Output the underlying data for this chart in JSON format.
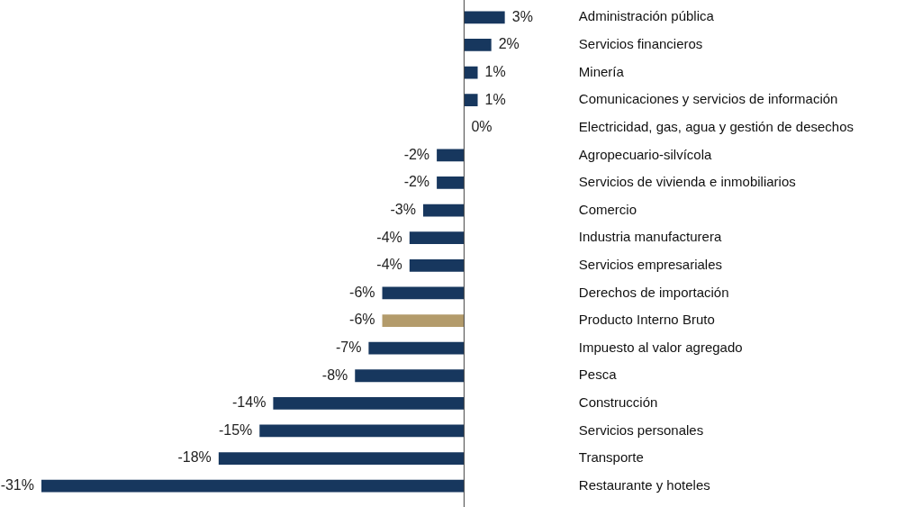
{
  "chart_data": {
    "type": "bar",
    "orientation": "horizontal",
    "categories": [
      "Administración pública",
      "Servicios financieros",
      "Minería",
      "Comunicaciones y servicios de información",
      "Electricidad, gas, agua y gestión de desechos",
      "Agropecuario-silvícola",
      "Servicios de vivienda e inmobiliarios",
      "Comercio",
      "Industria manufacturera",
      "Servicios empresariales",
      "Derechos de importación",
      "Producto Interno Bruto",
      "Impuesto al valor agregado",
      "Pesca",
      "Construcción",
      "Servicios personales",
      "Transporte",
      "Restaurante y hoteles"
    ],
    "values": [
      3,
      2,
      1,
      1,
      0,
      -2,
      -2,
      -3,
      -4,
      -4,
      -6,
      -6,
      -7,
      -8,
      -14,
      -15,
      -18,
      -31
    ],
    "colors": [
      "#17375e",
      "#17375e",
      "#17375e",
      "#17375e",
      "#17375e",
      "#17375e",
      "#17375e",
      "#17375e",
      "#17375e",
      "#17375e",
      "#17375e",
      "#b39b6b",
      "#17375e",
      "#17375e",
      "#17375e",
      "#17375e",
      "#17375e",
      "#17375e"
    ],
    "value_labels": [
      "3%",
      "2%",
      "1%",
      "1%",
      "0%",
      "-2%",
      "-2%",
      "-3%",
      "-4%",
      "-4%",
      "-6%",
      "-6%",
      "-7%",
      "-8%",
      "-14%",
      "-15%",
      "-18%",
      "-31%"
    ],
    "legend": false,
    "tick_labels": "y"
  }
}
